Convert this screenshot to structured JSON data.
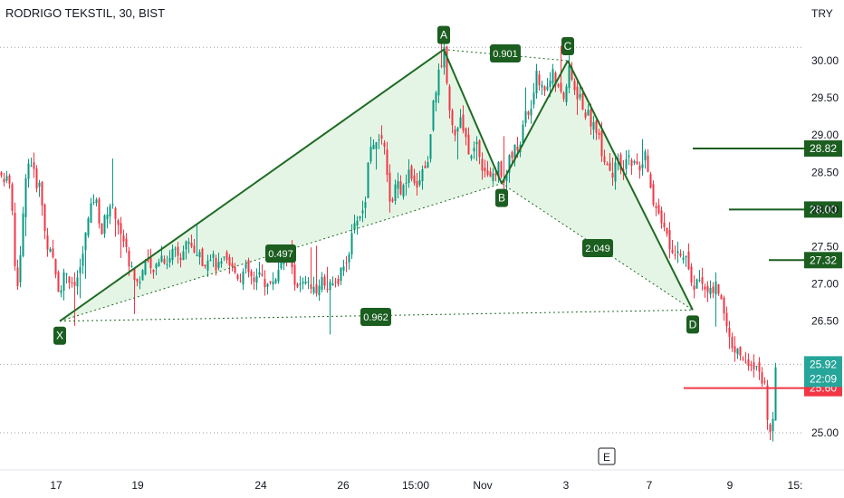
{
  "header": {
    "title": "RODRIGO TEKSTIL, 30, BIST",
    "currency": "TRY"
  },
  "colors": {
    "up": "#089981",
    "down": "#f23645",
    "pattern_line": "#1e6b24",
    "pattern_fill": "#cfeccf",
    "target_line": "#1b5e20",
    "badge": "#1b5e20",
    "stop_line": "#f23645",
    "price_badge": "#26a69a"
  },
  "chart_data": {
    "type": "candlestick",
    "title": "RODRIGO TEKSTIL, 30, BIST",
    "ylabel": "TRY",
    "ylim": [
      24.85,
      30.55
    ],
    "y_ticks": [
      "30.00",
      "29.50",
      "29.00",
      "28.50",
      "28.00",
      "27.50",
      "27.00",
      "26.50",
      "25.00"
    ],
    "x_ticks": [
      "17",
      "19",
      "24",
      "26",
      "15:00",
      "Nov",
      "3",
      "7",
      "9",
      "15:"
    ],
    "price_path": [
      [
        0,
        28.5
      ],
      [
        4,
        28.3
      ],
      [
        8,
        28.6
      ],
      [
        12,
        28.1
      ],
      [
        18,
        26.9
      ],
      [
        24,
        27.7
      ],
      [
        28,
        28.5
      ],
      [
        33,
        28.7
      ],
      [
        38,
        28.4
      ],
      [
        44,
        28.3
      ],
      [
        50,
        27.6
      ],
      [
        58,
        27.3
      ],
      [
        65,
        26.9
      ],
      [
        72,
        27.2
      ],
      [
        80,
        26.9
      ],
      [
        88,
        27.2
      ],
      [
        96,
        27.8
      ],
      [
        104,
        28.2
      ],
      [
        112,
        27.7
      ],
      [
        120,
        28.1
      ],
      [
        128,
        27.9
      ],
      [
        136,
        27.6
      ],
      [
        144,
        27.2
      ],
      [
        152,
        27.0
      ],
      [
        160,
        27.3
      ],
      [
        168,
        27.1
      ],
      [
        176,
        27.4
      ],
      [
        184,
        27.3
      ],
      [
        192,
        27.5
      ],
      [
        200,
        27.4
      ],
      [
        208,
        27.6
      ],
      [
        216,
        27.4
      ],
      [
        224,
        27.3
      ],
      [
        232,
        27.4
      ],
      [
        240,
        27.2
      ],
      [
        248,
        27.3
      ],
      [
        256,
        27.2
      ],
      [
        264,
        27.1
      ],
      [
        272,
        27.2
      ],
      [
        280,
        27.0
      ],
      [
        288,
        27.1
      ],
      [
        296,
        26.95
      ],
      [
        304,
        27.1
      ],
      [
        312,
        27.3
      ],
      [
        318,
        27.4
      ],
      [
        324,
        27.1
      ],
      [
        330,
        26.95
      ],
      [
        338,
        27.0
      ],
      [
        346,
        26.9
      ],
      [
        354,
        27.05
      ],
      [
        362,
        27.0
      ],
      [
        370,
        26.95
      ],
      [
        378,
        27.2
      ],
      [
        386,
        27.5
      ],
      [
        394,
        27.9
      ],
      [
        402,
        28.0
      ],
      [
        406,
        28.6
      ],
      [
        410,
        29.0
      ],
      [
        416,
        28.8
      ],
      [
        422,
        29.0
      ],
      [
        428,
        28.3
      ],
      [
        432,
        28.0
      ],
      [
        438,
        28.4
      ],
      [
        444,
        28.2
      ],
      [
        450,
        28.5
      ],
      [
        456,
        28.3
      ],
      [
        462,
        28.4
      ],
      [
        468,
        28.6
      ],
      [
        472,
        28.6
      ],
      [
        478,
        29.5
      ],
      [
        484,
        29.8
      ],
      [
        490,
        30.15
      ],
      [
        496,
        29.4
      ],
      [
        502,
        29.0
      ],
      [
        508,
        29.2
      ],
      [
        514,
        28.9
      ],
      [
        520,
        28.7
      ],
      [
        526,
        28.9
      ],
      [
        532,
        28.6
      ],
      [
        538,
        28.5
      ],
      [
        544,
        28.4
      ],
      [
        550,
        28.6
      ],
      [
        556,
        28.4
      ],
      [
        562,
        28.7
      ],
      [
        568,
        28.8
      ],
      [
        574,
        28.9
      ],
      [
        580,
        29.3
      ],
      [
        586,
        29.3
      ],
      [
        592,
        29.9
      ],
      [
        598,
        29.6
      ],
      [
        604,
        29.7
      ],
      [
        610,
        29.8
      ],
      [
        616,
        29.6
      ],
      [
        622,
        29.5
      ],
      [
        628,
        29.85
      ],
      [
        634,
        29.6
      ],
      [
        640,
        29.5
      ],
      [
        646,
        29.3
      ],
      [
        652,
        29.2
      ],
      [
        658,
        29.1
      ],
      [
        664,
        28.8
      ],
      [
        670,
        28.6
      ],
      [
        676,
        28.5
      ],
      [
        682,
        28.6
      ],
      [
        688,
        28.5
      ],
      [
        694,
        28.7
      ],
      [
        700,
        28.6
      ],
      [
        706,
        28.5
      ],
      [
        712,
        28.7
      ],
      [
        718,
        28.3
      ],
      [
        724,
        28.0
      ],
      [
        730,
        27.9
      ],
      [
        736,
        27.6
      ],
      [
        742,
        27.4
      ],
      [
        748,
        27.5
      ],
      [
        754,
        27.4
      ],
      [
        760,
        27.2
      ],
      [
        766,
        26.9
      ],
      [
        772,
        27.1
      ],
      [
        778,
        27.0
      ],
      [
        784,
        26.9
      ],
      [
        790,
        26.95
      ],
      [
        796,
        26.8
      ],
      [
        802,
        26.5
      ],
      [
        808,
        26.1
      ],
      [
        814,
        26.2
      ],
      [
        820,
        26.0
      ],
      [
        826,
        25.9
      ],
      [
        832,
        25.8
      ],
      [
        838,
        25.9
      ],
      [
        844,
        25.6
      ],
      [
        848,
        25.1
      ],
      [
        852,
        25.05
      ],
      [
        856,
        25.92
      ]
    ],
    "pattern": {
      "points": [
        {
          "label": "X",
          "price": 26.5
        },
        {
          "label": "A",
          "price": 30.15
        },
        {
          "label": "B",
          "price": 28.35
        },
        {
          "label": "C",
          "price": 30.0
        },
        {
          "label": "D",
          "price": 26.65
        }
      ],
      "ratios": [
        {
          "label": "0.497",
          "between": "X-B"
        },
        {
          "label": "0.901",
          "between": "A-C"
        },
        {
          "label": "0.962",
          "between": "X-D"
        },
        {
          "label": "2.049",
          "between": "B-D"
        }
      ]
    },
    "targets": [
      {
        "value": 28.82,
        "label": "28.82"
      },
      {
        "value": 28.0,
        "label": "28.00"
      },
      {
        "value": 27.32,
        "label": "27.32"
      }
    ],
    "stop": {
      "value": 25.6,
      "label": "25.60"
    },
    "last_price": {
      "value": 25.92,
      "label": "25.92",
      "countdown": "22:09"
    },
    "event_marker": "E"
  }
}
